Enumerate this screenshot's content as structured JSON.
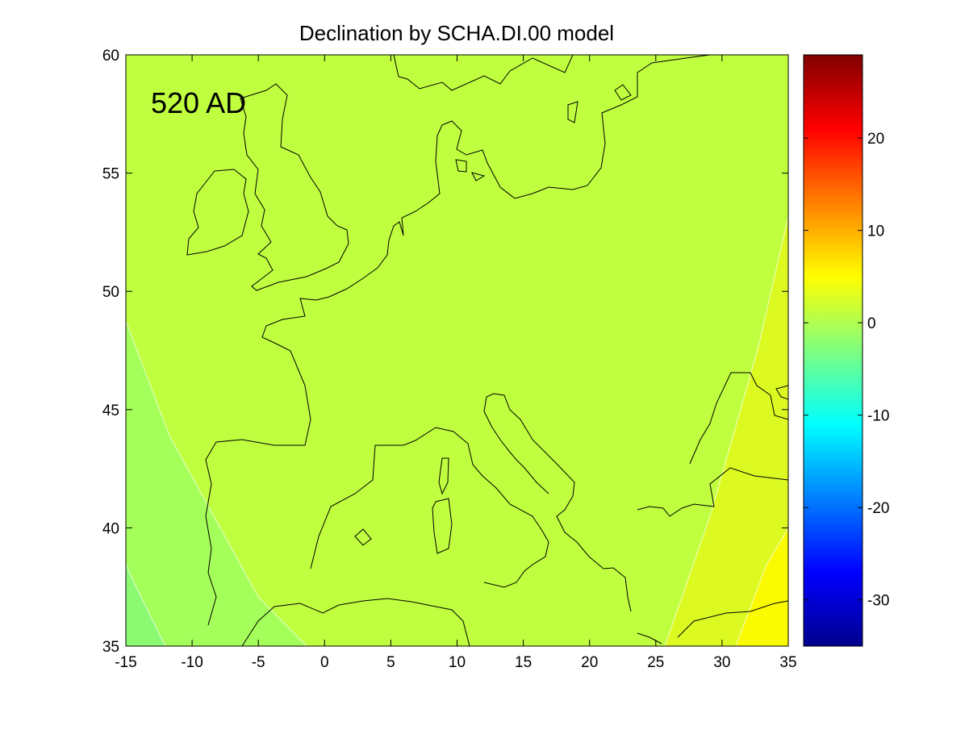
{
  "chart_data": {
    "type": "heatmap",
    "title": "Declination by SCHA.DI.00 model",
    "annotation": "520 AD",
    "xlabel": "",
    "ylabel": "",
    "xlim": [
      -15,
      35
    ],
    "ylim": [
      35,
      60
    ],
    "x_ticks": [
      -15,
      -10,
      -5,
      0,
      5,
      10,
      15,
      20,
      25,
      30,
      35
    ],
    "x_tick_labels": [
      "-15",
      "-10",
      "-5",
      "0",
      "5",
      "10",
      "15",
      "20",
      "25",
      "30",
      "35"
    ],
    "y_ticks": [
      35,
      40,
      45,
      50,
      55,
      60
    ],
    "y_tick_labels": [
      "35",
      "40",
      "45",
      "50",
      "55",
      "60"
    ],
    "colorbar": {
      "range": [
        -35,
        29
      ],
      "colormap": "jet",
      "ticks": [
        -30,
        -20,
        -10,
        0,
        10,
        20
      ],
      "tick_labels": [
        "-30",
        "-20",
        "-10",
        "0",
        "10",
        "20"
      ]
    },
    "contour_levels": [
      -4,
      -2,
      2,
      4
    ],
    "contour_bands": [
      {
        "range": [
          -6,
          -4
        ],
        "color": "#8cfb73"
      },
      {
        "range": [
          -4,
          -2
        ],
        "color": "#a4ff5b"
      },
      {
        "range": [
          -2,
          2
        ],
        "color": "#bfff3f"
      },
      {
        "range": [
          2,
          4
        ],
        "color": "#dcfa22"
      },
      {
        "range": [
          4,
          6
        ],
        "color": "#fafa00"
      }
    ],
    "grid": false,
    "coastlines": true
  }
}
